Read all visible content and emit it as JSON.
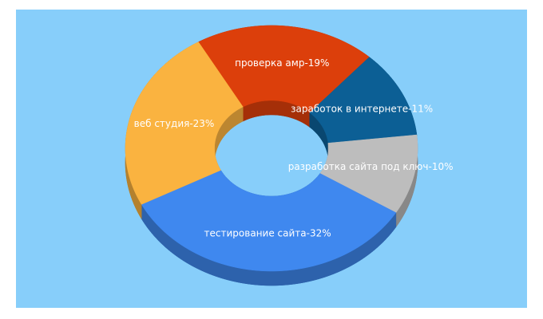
{
  "chart_data": {
    "type": "donut3d",
    "categories": [
      "проверка амр-19%",
      "заработок в интернете-11%",
      "разработка сайта под ключ-10%",
      "тестирование сайта-32%",
      "веб студия-23%"
    ],
    "values": [
      19,
      11,
      10,
      32,
      23
    ],
    "colors": [
      "#dc3f0b",
      "#0c5f95",
      "#bdbdbd",
      "#3f88ef",
      "#fab340"
    ]
  }
}
